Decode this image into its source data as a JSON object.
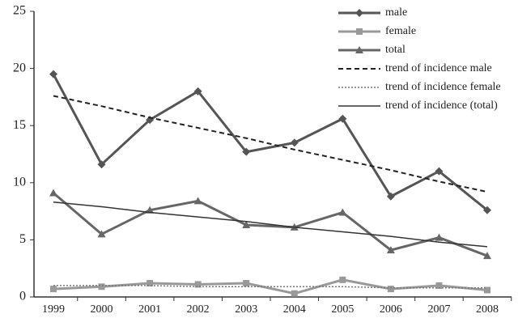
{
  "chart_data": {
    "type": "line",
    "categories": [
      "1999",
      "2000",
      "2001",
      "2002",
      "2003",
      "2004",
      "2005",
      "2006",
      "2007",
      "2008"
    ],
    "ylim": [
      0,
      25
    ],
    "yticks": [
      0,
      5,
      10,
      15,
      20,
      25
    ],
    "legend": "top-right",
    "series": [
      {
        "name": "male",
        "color": "#555555",
        "marker": "diamond",
        "dash": "solid",
        "width": 3,
        "values": [
          19.5,
          11.6,
          15.5,
          18.0,
          12.7,
          13.5,
          15.6,
          8.8,
          11.0,
          7.6
        ]
      },
      {
        "name": "female",
        "color": "#999999",
        "marker": "square",
        "dash": "solid",
        "width": 3,
        "values": [
          0.7,
          0.9,
          1.2,
          1.1,
          1.2,
          0.3,
          1.5,
          0.7,
          1.0,
          0.6
        ]
      },
      {
        "name": "total",
        "color": "#666666",
        "marker": "triangle",
        "dash": "solid",
        "width": 3,
        "values": [
          9.1,
          5.5,
          7.6,
          8.4,
          6.3,
          6.1,
          7.4,
          4.1,
          5.2,
          3.6
        ]
      },
      {
        "name": "trend of incidence male",
        "color": "#222222",
        "marker": "none",
        "dash": "dashed",
        "width": 2,
        "values": [
          17.6,
          16.7,
          15.7,
          14.8,
          13.9,
          12.9,
          12.0,
          11.1,
          10.1,
          9.2
        ]
      },
      {
        "name": "trend of incidence female",
        "color": "#777777",
        "marker": "none",
        "dash": "dotted",
        "width": 1.5,
        "values": [
          1.0,
          1.0,
          1.0,
          0.9,
          0.9,
          0.9,
          0.9,
          0.8,
          0.8,
          0.8
        ]
      },
      {
        "name": "trend of incidence (total)",
        "color": "#333333",
        "marker": "none",
        "dash": "solid",
        "width": 1.5,
        "values": [
          8.3,
          7.9,
          7.4,
          7.0,
          6.6,
          6.1,
          5.7,
          5.3,
          4.8,
          4.4
        ]
      }
    ]
  }
}
